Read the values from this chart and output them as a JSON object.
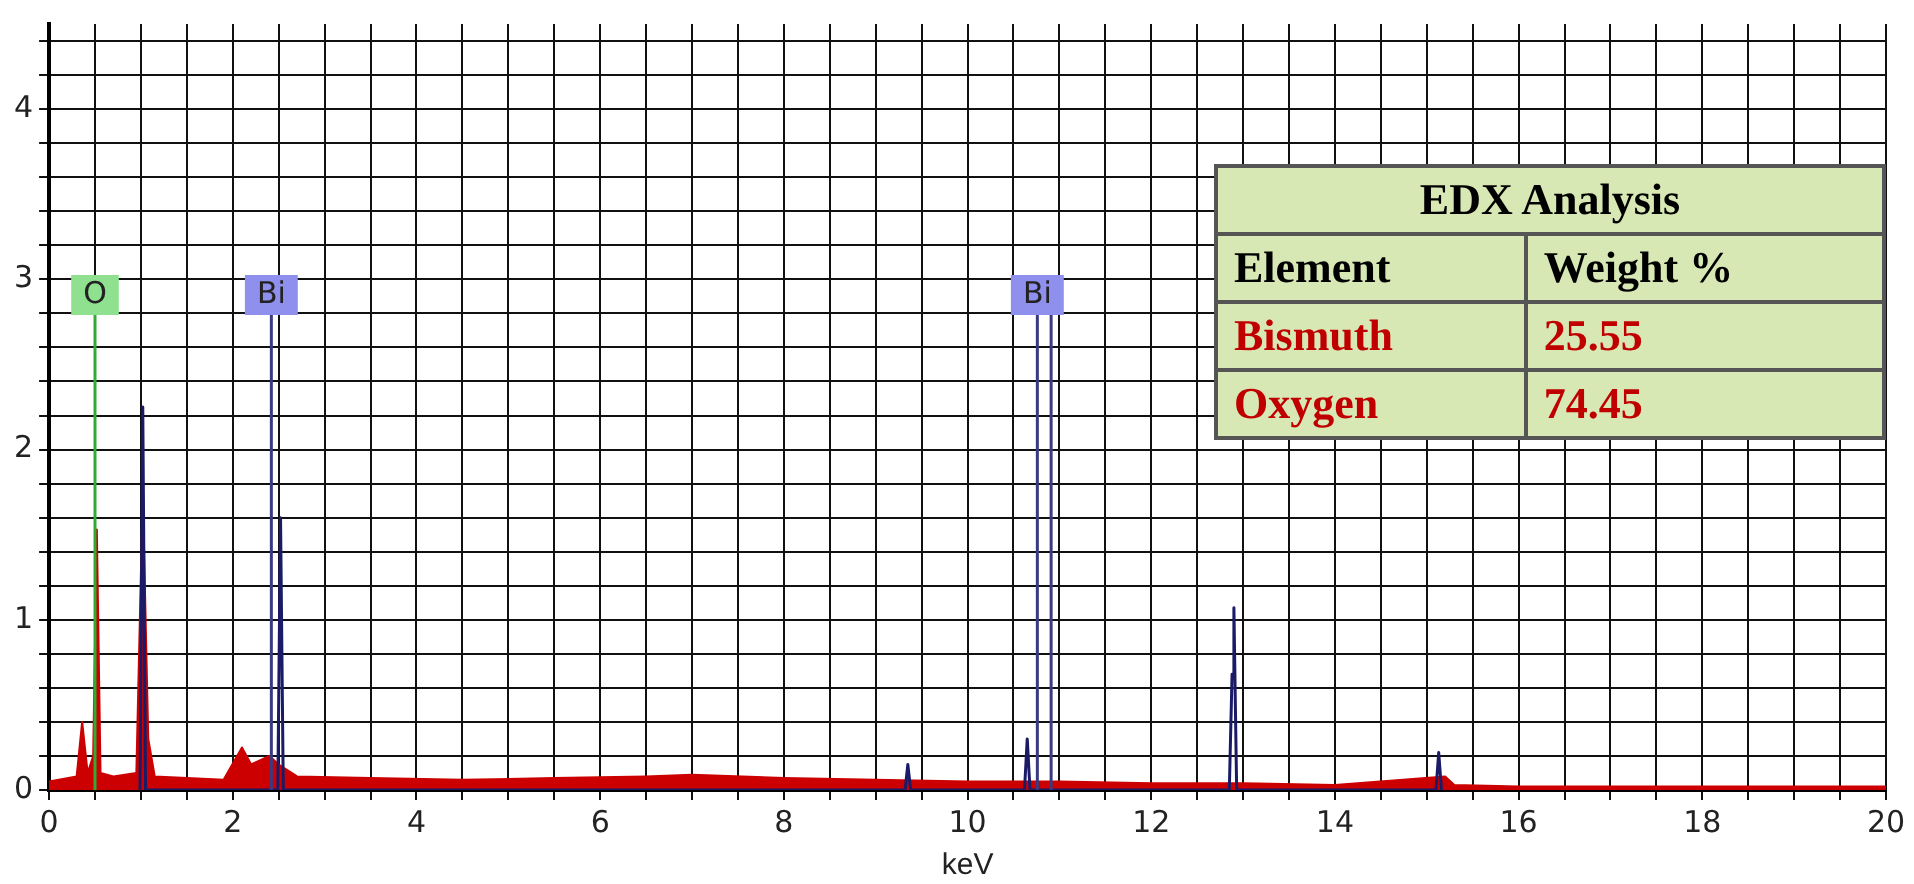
{
  "chart_data": {
    "type": "area",
    "xlabel": "keV",
    "legend": false,
    "grid": true,
    "marker": "none",
    "xlim": [
      0,
      20
    ],
    "ylim": [
      0,
      4.5
    ],
    "xticks": [
      0,
      {
        "value": 0.5,
        "label": null
      },
      {
        "value": 1,
        "label": null
      },
      {
        "value": 1.5,
        "label": null
      },
      2,
      {
        "value": 2.5,
        "label": null
      },
      {
        "value": 3,
        "label": null
      },
      {
        "value": 3.5,
        "label": null
      },
      4,
      {
        "value": 4.5,
        "label": null
      },
      {
        "value": 5,
        "label": null
      },
      {
        "value": 5.5,
        "label": null
      },
      6,
      {
        "value": 6.5,
        "label": null
      },
      {
        "value": 7,
        "label": null
      },
      {
        "value": 7.5,
        "label": null
      },
      8,
      {
        "value": 8.5,
        "label": null
      },
      {
        "value": 9,
        "label": null
      },
      {
        "value": 9.5,
        "label": null
      },
      10,
      {
        "value": 10.5,
        "label": null
      },
      {
        "value": 11,
        "label": null
      },
      {
        "value": 11.5,
        "label": null
      },
      12,
      {
        "value": 12.5,
        "label": null
      },
      {
        "value": 13,
        "label": null
      },
      {
        "value": 13.5,
        "label": null
      },
      14,
      {
        "value": 14.5,
        "label": null
      },
      {
        "value": 15,
        "label": null
      },
      {
        "value": 15.5,
        "label": null
      },
      16,
      {
        "value": 16.5,
        "label": null
      },
      {
        "value": 17,
        "label": null
      },
      {
        "value": 17.5,
        "label": null
      },
      18,
      {
        "value": 18.5,
        "label": null
      },
      {
        "value": 19,
        "label": null
      },
      {
        "value": 19.5,
        "label": null
      },
      20
    ],
    "yticks": [
      0,
      {
        "value": 0.2,
        "label": null
      },
      {
        "value": 0.4,
        "label": null
      },
      {
        "value": 0.6,
        "label": null
      },
      {
        "value": 0.8,
        "label": null
      },
      1,
      {
        "value": 1.2,
        "label": null
      },
      {
        "value": 1.4,
        "label": null
      },
      {
        "value": 1.6,
        "label": null
      },
      {
        "value": 1.8,
        "label": null
      },
      2,
      {
        "value": 2.2,
        "label": null
      },
      {
        "value": 2.4,
        "label": null
      },
      {
        "value": 2.6,
        "label": null
      },
      {
        "value": 2.8,
        "label": null
      },
      3,
      {
        "value": 3.2,
        "label": null
      },
      {
        "value": 3.4,
        "label": null
      },
      {
        "value": 3.6,
        "label": null
      },
      {
        "value": 3.8,
        "label": null
      },
      4,
      {
        "value": 4.2,
        "label": null
      },
      {
        "value": 4.4,
        "label": null
      }
    ],
    "series": [
      {
        "type": "area",
        "color": "#cc0000",
        "x": [
          0,
          0.3,
          0.36,
          0.42,
          0.48,
          0.52,
          0.56,
          0.7,
          0.95,
          1.02,
          1.08,
          1.15,
          1.5,
          1.9,
          2.1,
          2.2,
          2.4,
          2.5,
          2.7,
          3.5,
          4.5,
          5.5,
          6.5,
          7,
          8,
          9,
          10,
          11,
          12,
          13,
          14,
          15.2,
          15.3,
          16,
          18,
          20
        ],
        "values": [
          0.05,
          0.08,
          0.4,
          0.1,
          0.2,
          1.53,
          0.1,
          0.08,
          0.1,
          1.75,
          0.3,
          0.08,
          0.07,
          0.06,
          0.25,
          0.15,
          0.2,
          0.15,
          0.08,
          0.07,
          0.06,
          0.07,
          0.08,
          0.09,
          0.07,
          0.06,
          0.05,
          0.05,
          0.04,
          0.04,
          0.03,
          0.08,
          0.03,
          0.02,
          0.02,
          0.02
        ]
      },
      {
        "type": "line",
        "color": "#1a1a66",
        "x": [
          0.99,
          1.02,
          1.05,
          2.49,
          2.52,
          2.55,
          9.32,
          9.35,
          9.38,
          10.62,
          10.65,
          10.68,
          12.85,
          12.88,
          12.9,
          12.93,
          15.1,
          15.13,
          15.16
        ],
        "values": [
          0,
          2.25,
          0,
          0,
          1.6,
          0,
          0,
          0.15,
          0,
          0,
          0.3,
          0,
          0,
          0.68,
          1.07,
          0,
          0,
          0.22,
          0
        ]
      }
    ],
    "ref_lines": [
      {
        "axis": "x",
        "value": 0.5,
        "label": "O",
        "color": "#33aa33"
      },
      {
        "axis": "x",
        "value": 2.42,
        "label": "Bi",
        "color": "#3a3a80"
      },
      {
        "axis": "x",
        "value": 10.76,
        "label": "Bi",
        "color": "#3a3a80"
      },
      {
        "axis": "x",
        "value": 10.91,
        "label": null,
        "color": "#3a3a80"
      }
    ],
    "annotations": [
      "EDX Analysis",
      "Element",
      "Weight %",
      "Bismuth",
      "25.55",
      "Oxygen",
      "74.45"
    ]
  }
}
